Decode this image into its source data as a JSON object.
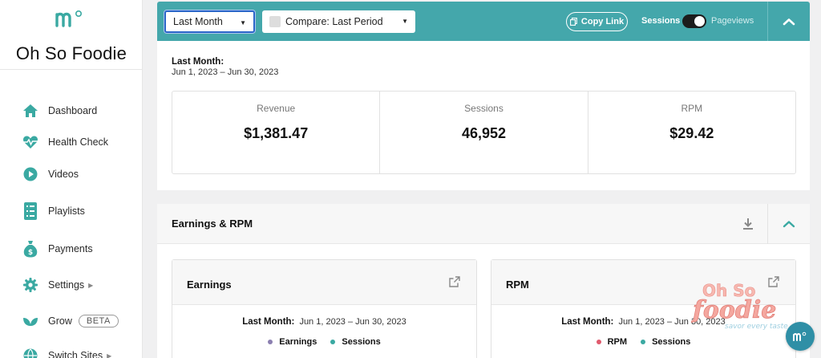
{
  "sidebar": {
    "site_name": "Oh So Foodie",
    "items": [
      {
        "label": "Dashboard",
        "icon": "home-icon"
      },
      {
        "label": "Health Check",
        "icon": "heartbeat-icon"
      },
      {
        "label": "Videos",
        "icon": "play-icon"
      },
      {
        "label": "Playlists",
        "icon": "list-icon"
      },
      {
        "label": "Payments",
        "icon": "money-bag-icon"
      },
      {
        "label": "Settings",
        "icon": "gear-icon"
      },
      {
        "label": "Grow",
        "icon": "leaf-icon",
        "badge": "BETA"
      },
      {
        "label": "Switch Sites",
        "icon": "globe-icon"
      }
    ]
  },
  "filters": {
    "date_range": "Last Month",
    "compare": "Compare: Last Period",
    "copy_link": "Copy Link",
    "toggle_left": "Sessions",
    "toggle_right": "Pageviews"
  },
  "summary": {
    "period_label": "Last Month:",
    "period_range": "Jun 1, 2023 – Jun 30, 2023",
    "metrics": [
      {
        "label": "Revenue",
        "value": "$1,381.47"
      },
      {
        "label": "Sessions",
        "value": "46,952"
      },
      {
        "label": "RPM",
        "value": "$29.42"
      }
    ]
  },
  "earnings_rpm": {
    "title": "Earnings & RPM",
    "panels": [
      {
        "title": "Earnings",
        "period_label": "Last Month:",
        "period_range": "Jun 1, 2023 – Jun 30, 2023",
        "legend": [
          "Earnings",
          "Sessions"
        ]
      },
      {
        "title": "RPM",
        "period_label": "Last Month:",
        "period_range": "Jun 1, 2023 – Jun 30, 2023",
        "legend": [
          "RPM",
          "Sessions"
        ]
      }
    ]
  },
  "watermark": {
    "brand": "Oh So foodie",
    "tagline": "savor every taste"
  },
  "colors": {
    "accent": "#44a7ab",
    "earnings": "#8b7fb0",
    "sessions": "#3aa9a2",
    "rpm": "#e05a6d"
  }
}
